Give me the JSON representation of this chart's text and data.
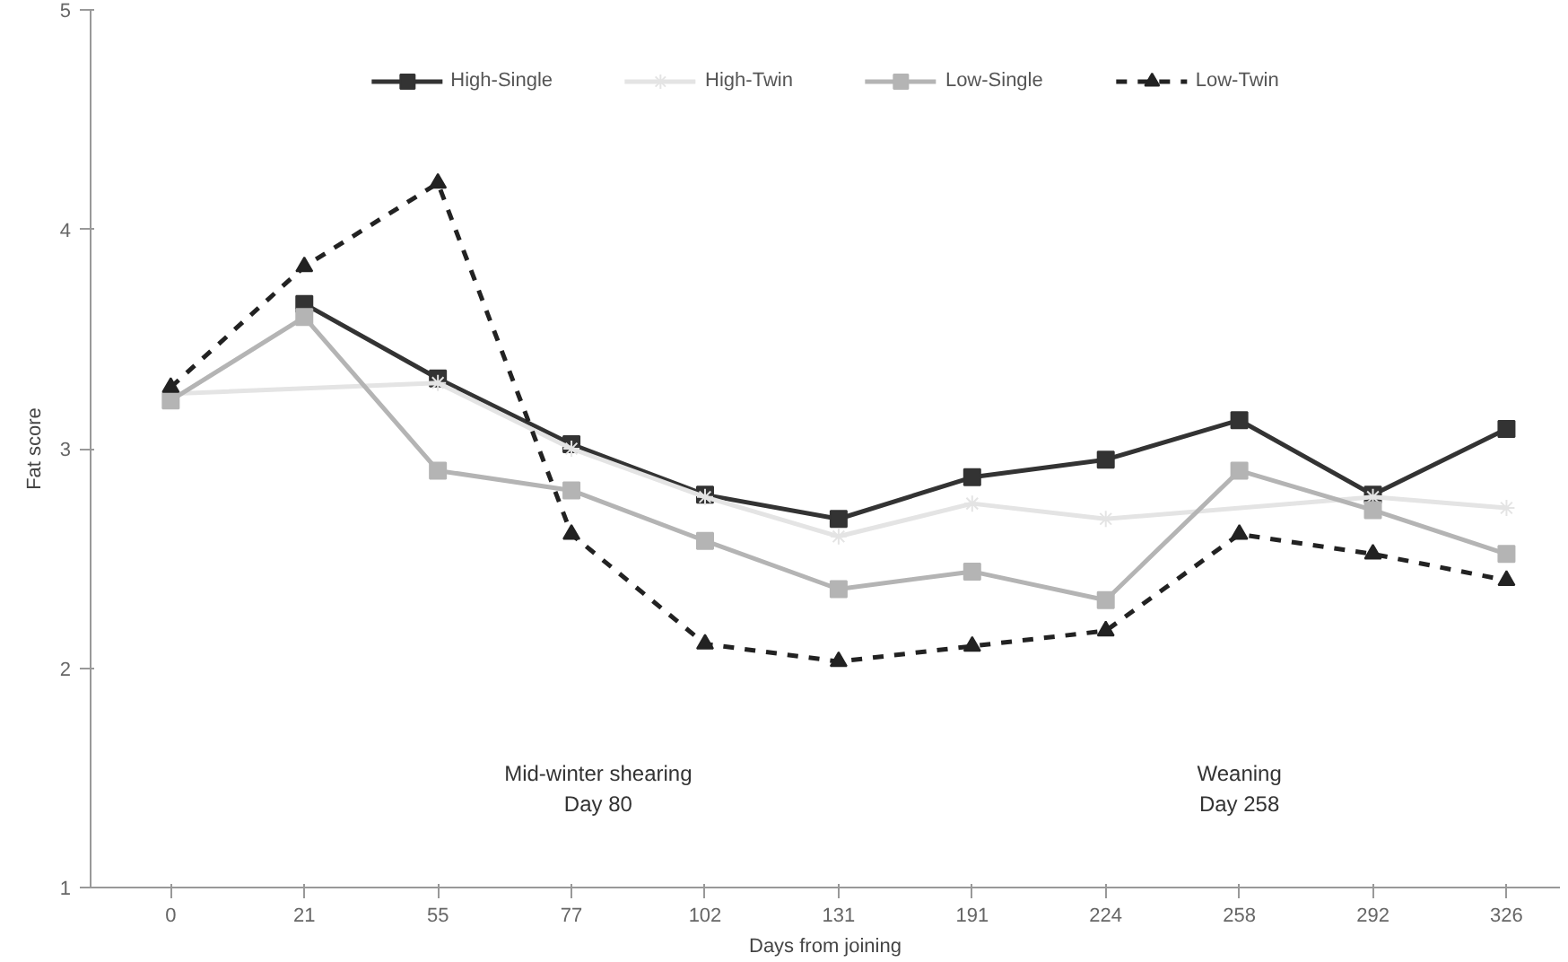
{
  "chart_data": {
    "type": "line",
    "xlabel": "Days from joining",
    "ylabel": "Fat score",
    "categories": [
      "0",
      "21",
      "55",
      "77",
      "102",
      "131",
      "191",
      "224",
      "258",
      "292",
      "326"
    ],
    "ylim": [
      1,
      5
    ],
    "yticks": [
      1,
      2,
      3,
      4,
      5
    ],
    "grid": false,
    "legend": "top",
    "series": [
      {
        "name": "High-Single",
        "color": "#333333",
        "marker": "square",
        "line_style": "solid",
        "values": [
          null,
          3.66,
          3.32,
          3.02,
          2.79,
          2.68,
          2.87,
          2.95,
          3.13,
          2.79,
          3.09
        ]
      },
      {
        "name": "High-Twin",
        "color": "#e4e4e4",
        "marker": "cross",
        "line_style": "solid",
        "values": [
          3.25,
          null,
          3.3,
          3.0,
          2.78,
          2.6,
          2.75,
          2.68,
          null,
          2.78,
          2.73
        ]
      },
      {
        "name": "Low-Single",
        "color": "#b4b4b4",
        "marker": "square",
        "line_style": "solid",
        "values": [
          3.22,
          3.6,
          2.9,
          2.81,
          2.58,
          2.36,
          2.44,
          2.31,
          2.9,
          2.72,
          2.52
        ]
      },
      {
        "name": "Low-Twin",
        "color": "#222222",
        "marker": "triangle",
        "line_style": "dashed",
        "values": [
          3.28,
          3.83,
          4.21,
          2.61,
          2.11,
          2.03,
          2.1,
          2.17,
          2.61,
          2.52,
          2.4
        ]
      }
    ],
    "annotations": [
      "Mid-winter shearing\nDay 80",
      "Weaning\nDay 258"
    ]
  }
}
